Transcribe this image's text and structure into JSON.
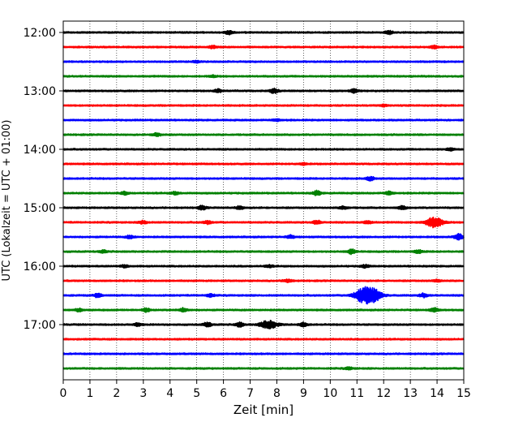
{
  "chart_data": {
    "type": "line",
    "xlabel": "Zeit  [min]",
    "ylabel": "UTC (Lokalzeit = UTC + 01:00)",
    "xlim": [
      0,
      15
    ],
    "xticks": [
      0,
      1,
      2,
      3,
      4,
      5,
      6,
      7,
      8,
      9,
      10,
      11,
      12,
      13,
      14,
      15
    ],
    "grid": "vertical dotted",
    "row_minutes": 15,
    "start_time": "12:00",
    "end_time": "17:45",
    "ytick_labels": [
      "12:00",
      "13:00",
      "14:00",
      "15:00",
      "16:00",
      "17:00"
    ],
    "trace_colors": [
      "#000000",
      "#ff0000",
      "#0000ff",
      "#008000"
    ],
    "rows": [
      {
        "time": "12:00",
        "color": "#000000",
        "events": [
          {
            "t": 6.2,
            "amp": 0.25
          },
          {
            "t": 12.2,
            "amp": 0.2
          }
        ]
      },
      {
        "time": "12:15",
        "color": "#ff0000",
        "events": [
          {
            "t": 5.6,
            "amp": 0.15
          },
          {
            "t": 13.9,
            "amp": 0.2
          }
        ]
      },
      {
        "time": "12:30",
        "color": "#0000ff",
        "events": [
          {
            "t": 5.0,
            "amp": 0.12
          }
        ]
      },
      {
        "time": "12:45",
        "color": "#008000",
        "events": [
          {
            "t": 5.6,
            "amp": 0.12
          }
        ]
      },
      {
        "time": "13:00",
        "color": "#000000",
        "events": [
          {
            "t": 5.8,
            "amp": 0.2
          },
          {
            "t": 7.9,
            "amp": 0.3
          },
          {
            "t": 10.9,
            "amp": 0.25
          }
        ]
      },
      {
        "time": "13:15",
        "color": "#ff0000",
        "events": [
          {
            "t": 12.0,
            "amp": 0.12
          }
        ]
      },
      {
        "time": "13:30",
        "color": "#0000ff",
        "events": [
          {
            "t": 8.0,
            "amp": 0.12
          }
        ]
      },
      {
        "time": "13:45",
        "color": "#008000",
        "events": [
          {
            "t": 3.5,
            "amp": 0.22
          }
        ]
      },
      {
        "time": "14:00",
        "color": "#000000",
        "events": [
          {
            "t": 14.5,
            "amp": 0.15
          }
        ]
      },
      {
        "time": "14:15",
        "color": "#ff0000",
        "events": [
          {
            "t": 9.0,
            "amp": 0.12
          }
        ]
      },
      {
        "time": "14:30",
        "color": "#0000ff",
        "events": [
          {
            "t": 11.5,
            "amp": 0.25
          }
        ]
      },
      {
        "time": "14:45",
        "color": "#008000",
        "events": [
          {
            "t": 2.3,
            "amp": 0.18
          },
          {
            "t": 4.2,
            "amp": 0.18
          },
          {
            "t": 9.5,
            "amp": 0.3
          },
          {
            "t": 12.2,
            "amp": 0.2
          }
        ]
      },
      {
        "time": "15:00",
        "color": "#000000",
        "events": [
          {
            "t": 5.2,
            "amp": 0.25
          },
          {
            "t": 6.6,
            "amp": 0.2
          },
          {
            "t": 10.5,
            "amp": 0.2
          },
          {
            "t": 12.7,
            "amp": 0.22
          }
        ]
      },
      {
        "time": "15:15",
        "color": "#ff0000",
        "events": [
          {
            "t": 3.0,
            "amp": 0.22
          },
          {
            "t": 5.4,
            "amp": 0.22
          },
          {
            "t": 9.5,
            "amp": 0.25
          },
          {
            "t": 11.4,
            "amp": 0.22
          },
          {
            "t": 13.9,
            "amp": 0.7
          }
        ]
      },
      {
        "time": "15:30",
        "color": "#0000ff",
        "events": [
          {
            "t": 2.5,
            "amp": 0.2
          },
          {
            "t": 8.5,
            "amp": 0.2
          },
          {
            "t": 14.8,
            "amp": 0.45
          }
        ]
      },
      {
        "time": "15:45",
        "color": "#008000",
        "events": [
          {
            "t": 1.5,
            "amp": 0.15
          },
          {
            "t": 10.8,
            "amp": 0.3
          },
          {
            "t": 13.3,
            "amp": 0.2
          }
        ]
      },
      {
        "time": "16:00",
        "color": "#000000",
        "events": [
          {
            "t": 2.3,
            "amp": 0.15
          },
          {
            "t": 7.7,
            "amp": 0.15
          },
          {
            "t": 11.3,
            "amp": 0.18
          }
        ]
      },
      {
        "time": "16:15",
        "color": "#ff0000",
        "events": [
          {
            "t": 8.4,
            "amp": 0.2
          },
          {
            "t": 14.0,
            "amp": 0.15
          }
        ]
      },
      {
        "time": "16:30",
        "color": "#0000ff",
        "events": [
          {
            "t": 1.3,
            "amp": 0.25
          },
          {
            "t": 5.5,
            "amp": 0.2
          },
          {
            "t": 11.2,
            "amp": 0.8
          },
          {
            "t": 11.6,
            "amp": 0.9
          },
          {
            "t": 13.5,
            "amp": 0.25
          }
        ]
      },
      {
        "time": "16:45",
        "color": "#008000",
        "events": [
          {
            "t": 0.6,
            "amp": 0.2
          },
          {
            "t": 3.1,
            "amp": 0.25
          },
          {
            "t": 4.5,
            "amp": 0.25
          },
          {
            "t": 13.9,
            "amp": 0.25
          }
        ]
      },
      {
        "time": "17:00",
        "color": "#000000",
        "events": [
          {
            "t": 2.8,
            "amp": 0.2
          },
          {
            "t": 5.4,
            "amp": 0.3
          },
          {
            "t": 6.6,
            "amp": 0.3
          },
          {
            "t": 7.7,
            "amp": 0.55
          },
          {
            "t": 9.0,
            "amp": 0.25
          }
        ]
      },
      {
        "time": "17:15",
        "color": "#ff0000",
        "events": []
      },
      {
        "time": "17:30",
        "color": "#0000ff",
        "events": []
      },
      {
        "time": "17:45",
        "color": "#008000",
        "events": [
          {
            "t": 10.7,
            "amp": 0.15
          }
        ]
      }
    ]
  }
}
